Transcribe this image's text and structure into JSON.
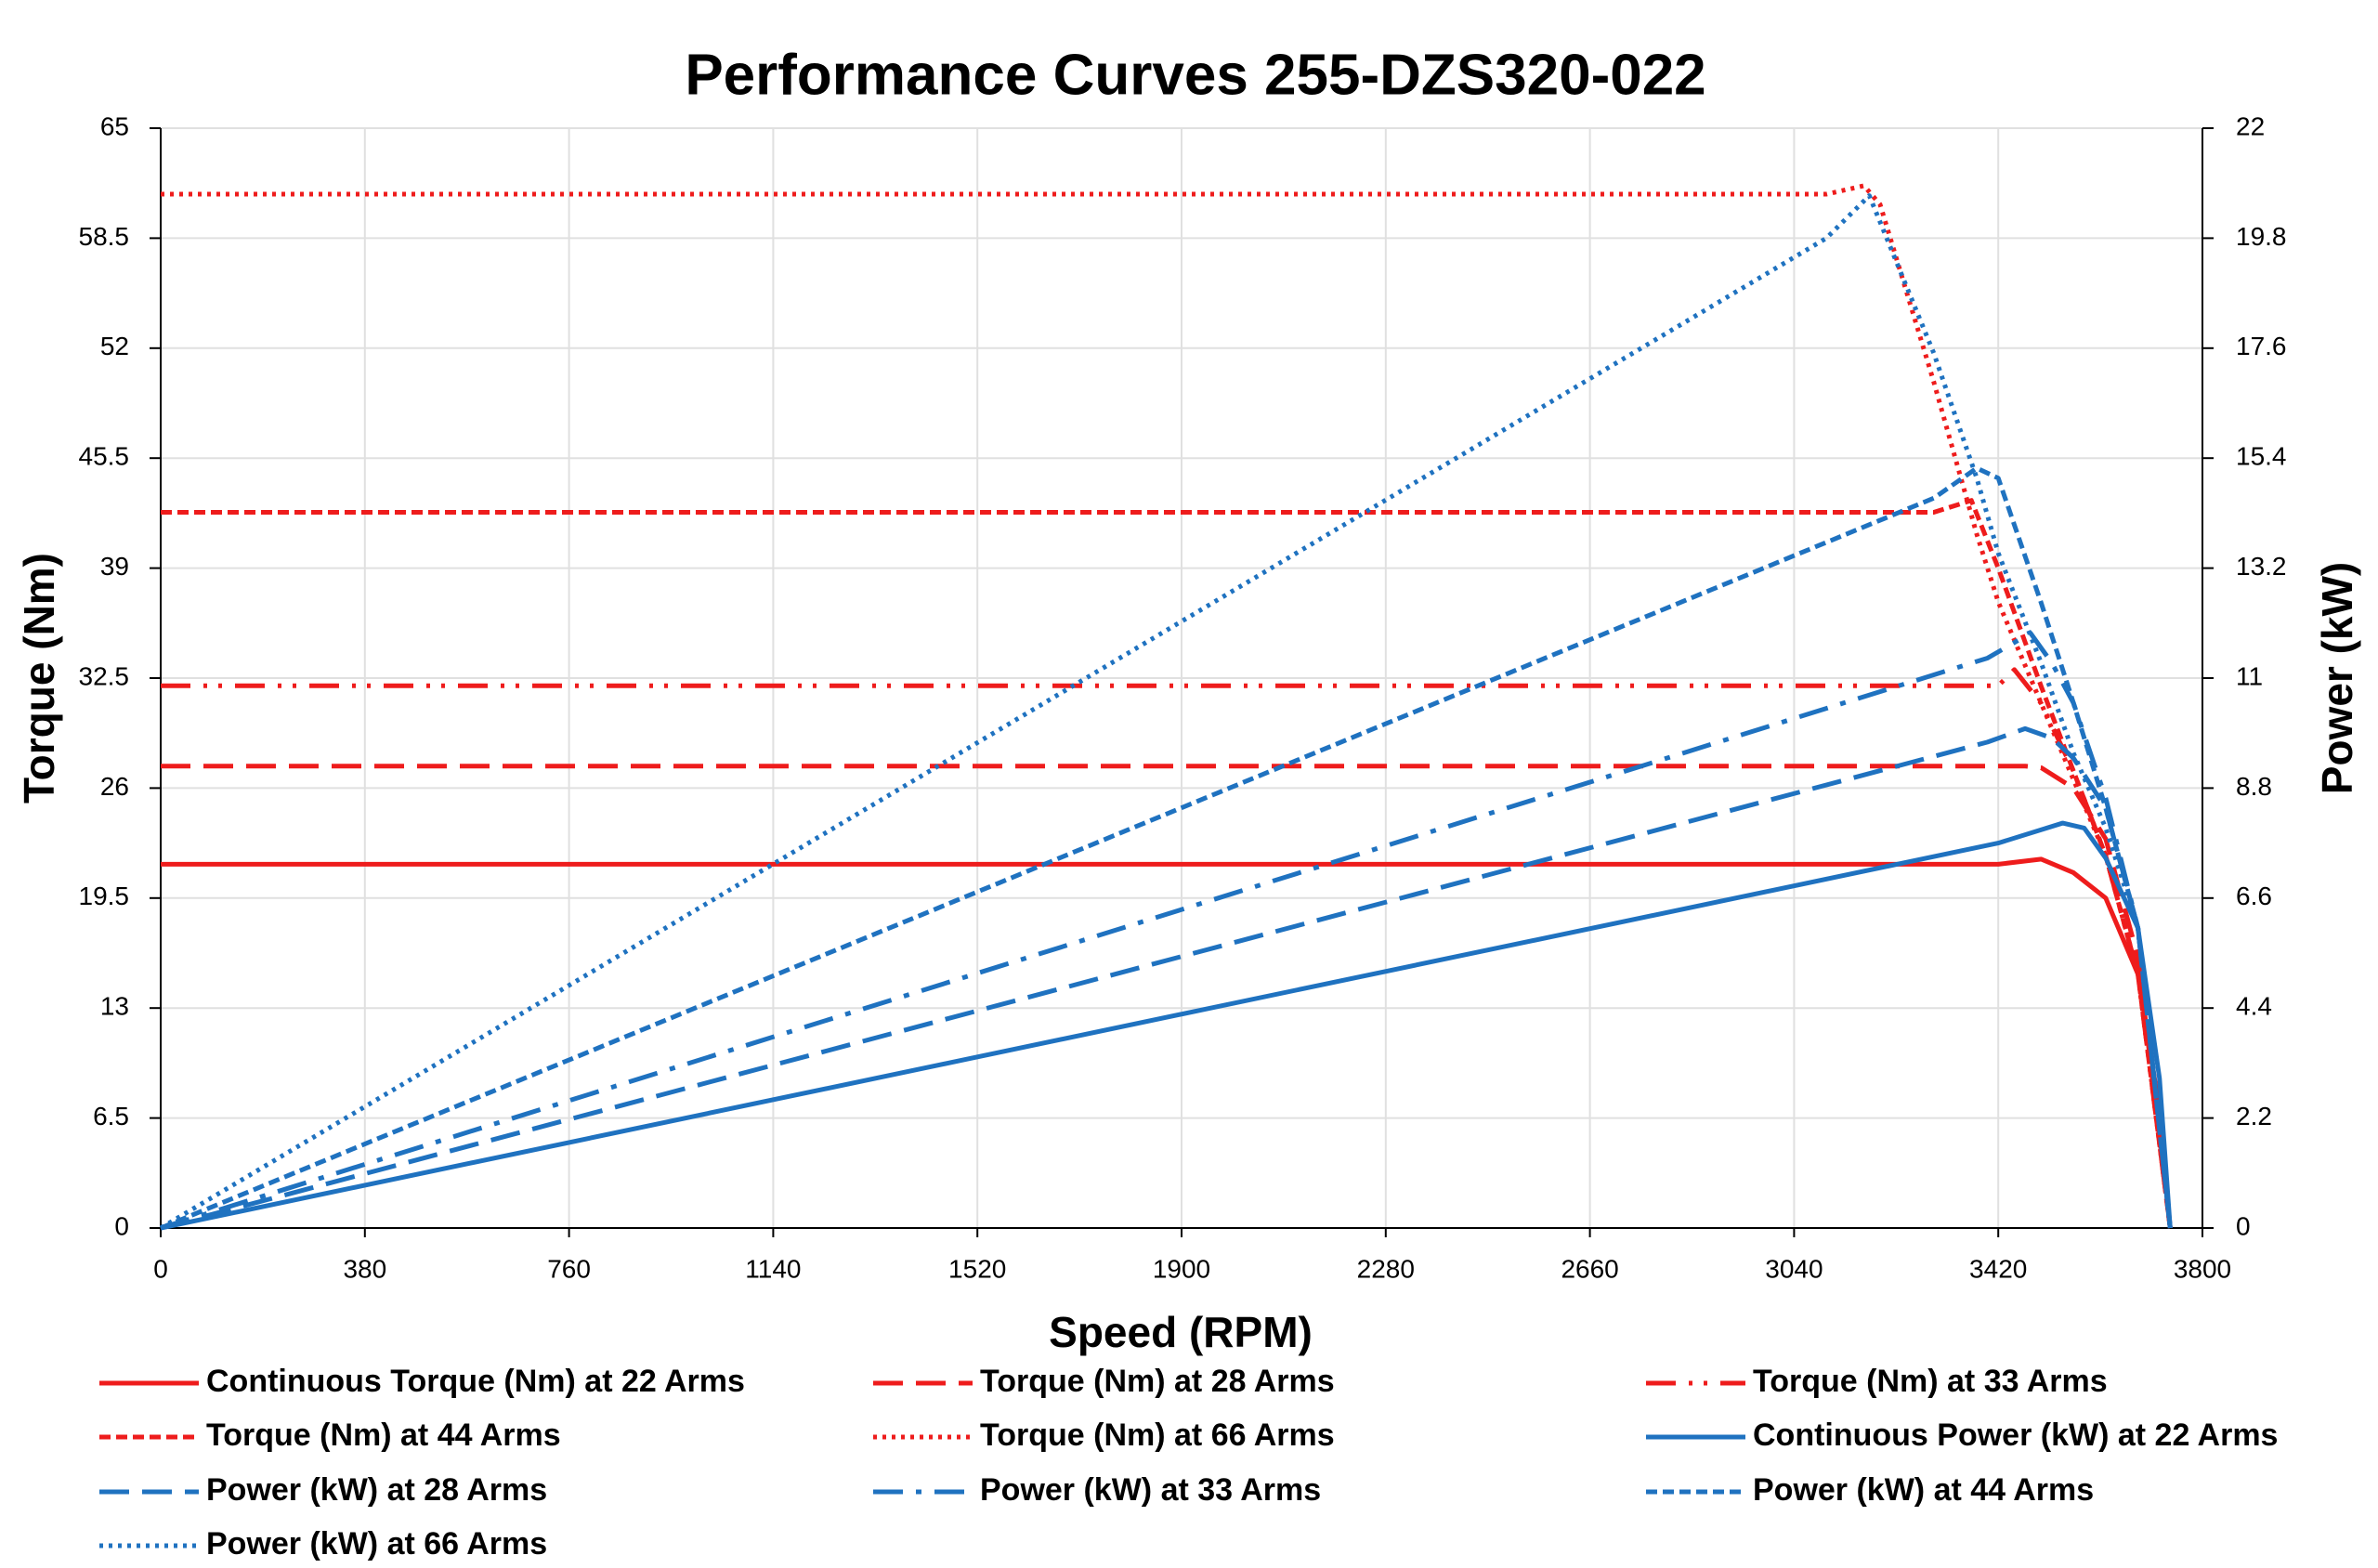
{
  "chart_data": {
    "type": "line",
    "title": "Performance Curves 255-DZS320-022",
    "x_label": "Speed (RPM)",
    "y_label": "Torque (Nm)",
    "y2_label": "Power (kW)",
    "xlim": [
      0,
      3800
    ],
    "xticks": [
      0,
      380,
      760,
      1140,
      1520,
      1900,
      2280,
      2660,
      3040,
      3420,
      3800
    ],
    "ylim": [
      0,
      65
    ],
    "yticks": [
      0,
      6.5,
      13,
      19.5,
      26,
      32.5,
      39,
      45.5,
      52,
      58.5,
      65
    ],
    "y2lim": [
      0,
      22
    ],
    "y2ticks": [
      0,
      2.2,
      4.4,
      6.6,
      8.8,
      11,
      13.2,
      15.4,
      17.6,
      19.8,
      22
    ],
    "grid": true,
    "series": [
      {
        "name": "Continuous Torque (Nm) at 22 Arms",
        "color": "#ee1c1c",
        "dash": "solid",
        "x": [
          0,
          3420,
          3500,
          3560,
          3620,
          3680,
          3720,
          3740
        ],
        "values": [
          21.5,
          21.5,
          21.8,
          21.0,
          19.5,
          15,
          7,
          0
        ]
      },
      {
        "name": "Torque (Nm) at 28 Arms",
        "color": "#ee1c1c",
        "dash": "long-dash",
        "x": [
          0,
          3470,
          3500,
          3560,
          3620,
          3680,
          3740
        ],
        "values": [
          27.3,
          27.3,
          27.2,
          26,
          23,
          16,
          0
        ]
      },
      {
        "name": "Torque (Nm) at 33 Arms",
        "color": "#ee1c1c",
        "dash": "long-dash-dot-dot",
        "x": [
          0,
          3420,
          3450,
          3500,
          3560,
          3620,
          3680,
          3740
        ],
        "values": [
          32.05,
          32.05,
          33,
          31,
          27,
          22,
          15,
          0
        ]
      },
      {
        "name": "Torque (Nm) at 44 Arms",
        "color": "#ee1c1c",
        "dash": "dash",
        "x": [
          0,
          3300,
          3370,
          3420,
          3500,
          3560,
          3620,
          3680,
          3740
        ],
        "values": [
          42.3,
          42.3,
          43,
          39,
          32,
          27,
          22,
          15,
          0
        ]
      },
      {
        "name": "Torque (Nm) at 66 Arms",
        "color": "#ee1c1c",
        "dash": "dot",
        "x": [
          0,
          3100,
          3170,
          3200,
          3300,
          3380,
          3420,
          3500,
          3560,
          3620,
          3680,
          3740
        ],
        "values": [
          61.1,
          61.1,
          61.6,
          60.5,
          50,
          41,
          37,
          31,
          26.5,
          22,
          15,
          0
        ]
      },
      {
        "name": "Continuous Power (kW) at 22 Arms",
        "color": "#1f72c0",
        "dash": "solid",
        "axis": "y2",
        "x": [
          0,
          3420,
          3540,
          3580,
          3620,
          3680,
          3720,
          3740
        ],
        "values": [
          0,
          7.7,
          8.1,
          8.0,
          7.4,
          6.0,
          3.0,
          0
        ]
      },
      {
        "name": "Power (kW) at 28 Arms",
        "color": "#1f72c0",
        "dash": "long-dash",
        "axis": "y2",
        "x": [
          0,
          3400,
          3470,
          3520,
          3560,
          3620,
          3680,
          3740
        ],
        "values": [
          0,
          9.72,
          9.99,
          9.8,
          9.4,
          8.4,
          6,
          0
        ]
      },
      {
        "name": "Power (kW) at 33 Arms",
        "color": "#1f72c0",
        "dash": "long-dash-dot",
        "axis": "y2",
        "x": [
          0,
          3400,
          3480,
          3520,
          3560,
          3620,
          3680,
          3740
        ],
        "values": [
          0,
          11.4,
          11.9,
          11.3,
          10.5,
          8.6,
          6,
          0
        ]
      },
      {
        "name": "Power (kW) at 44 Arms",
        "color": "#1f72c0",
        "dash": "dash",
        "axis": "y2",
        "x": [
          0,
          3300,
          3380,
          3420,
          3500,
          3560,
          3620,
          3680,
          3740
        ],
        "values": [
          0,
          14.6,
          15.2,
          15.0,
          12.5,
          10.5,
          8.4,
          6,
          0
        ]
      },
      {
        "name": "Power (kW) at 66 Arms",
        "color": "#1f72c0",
        "dash": "dot",
        "axis": "y2",
        "x": [
          0,
          3100,
          3180,
          3300,
          3380,
          3420,
          3500,
          3560,
          3620,
          3680,
          3740
        ],
        "values": [
          0,
          19.8,
          20.65,
          17.5,
          15,
          13.5,
          11.3,
          9.5,
          8,
          6,
          0
        ]
      }
    ]
  }
}
